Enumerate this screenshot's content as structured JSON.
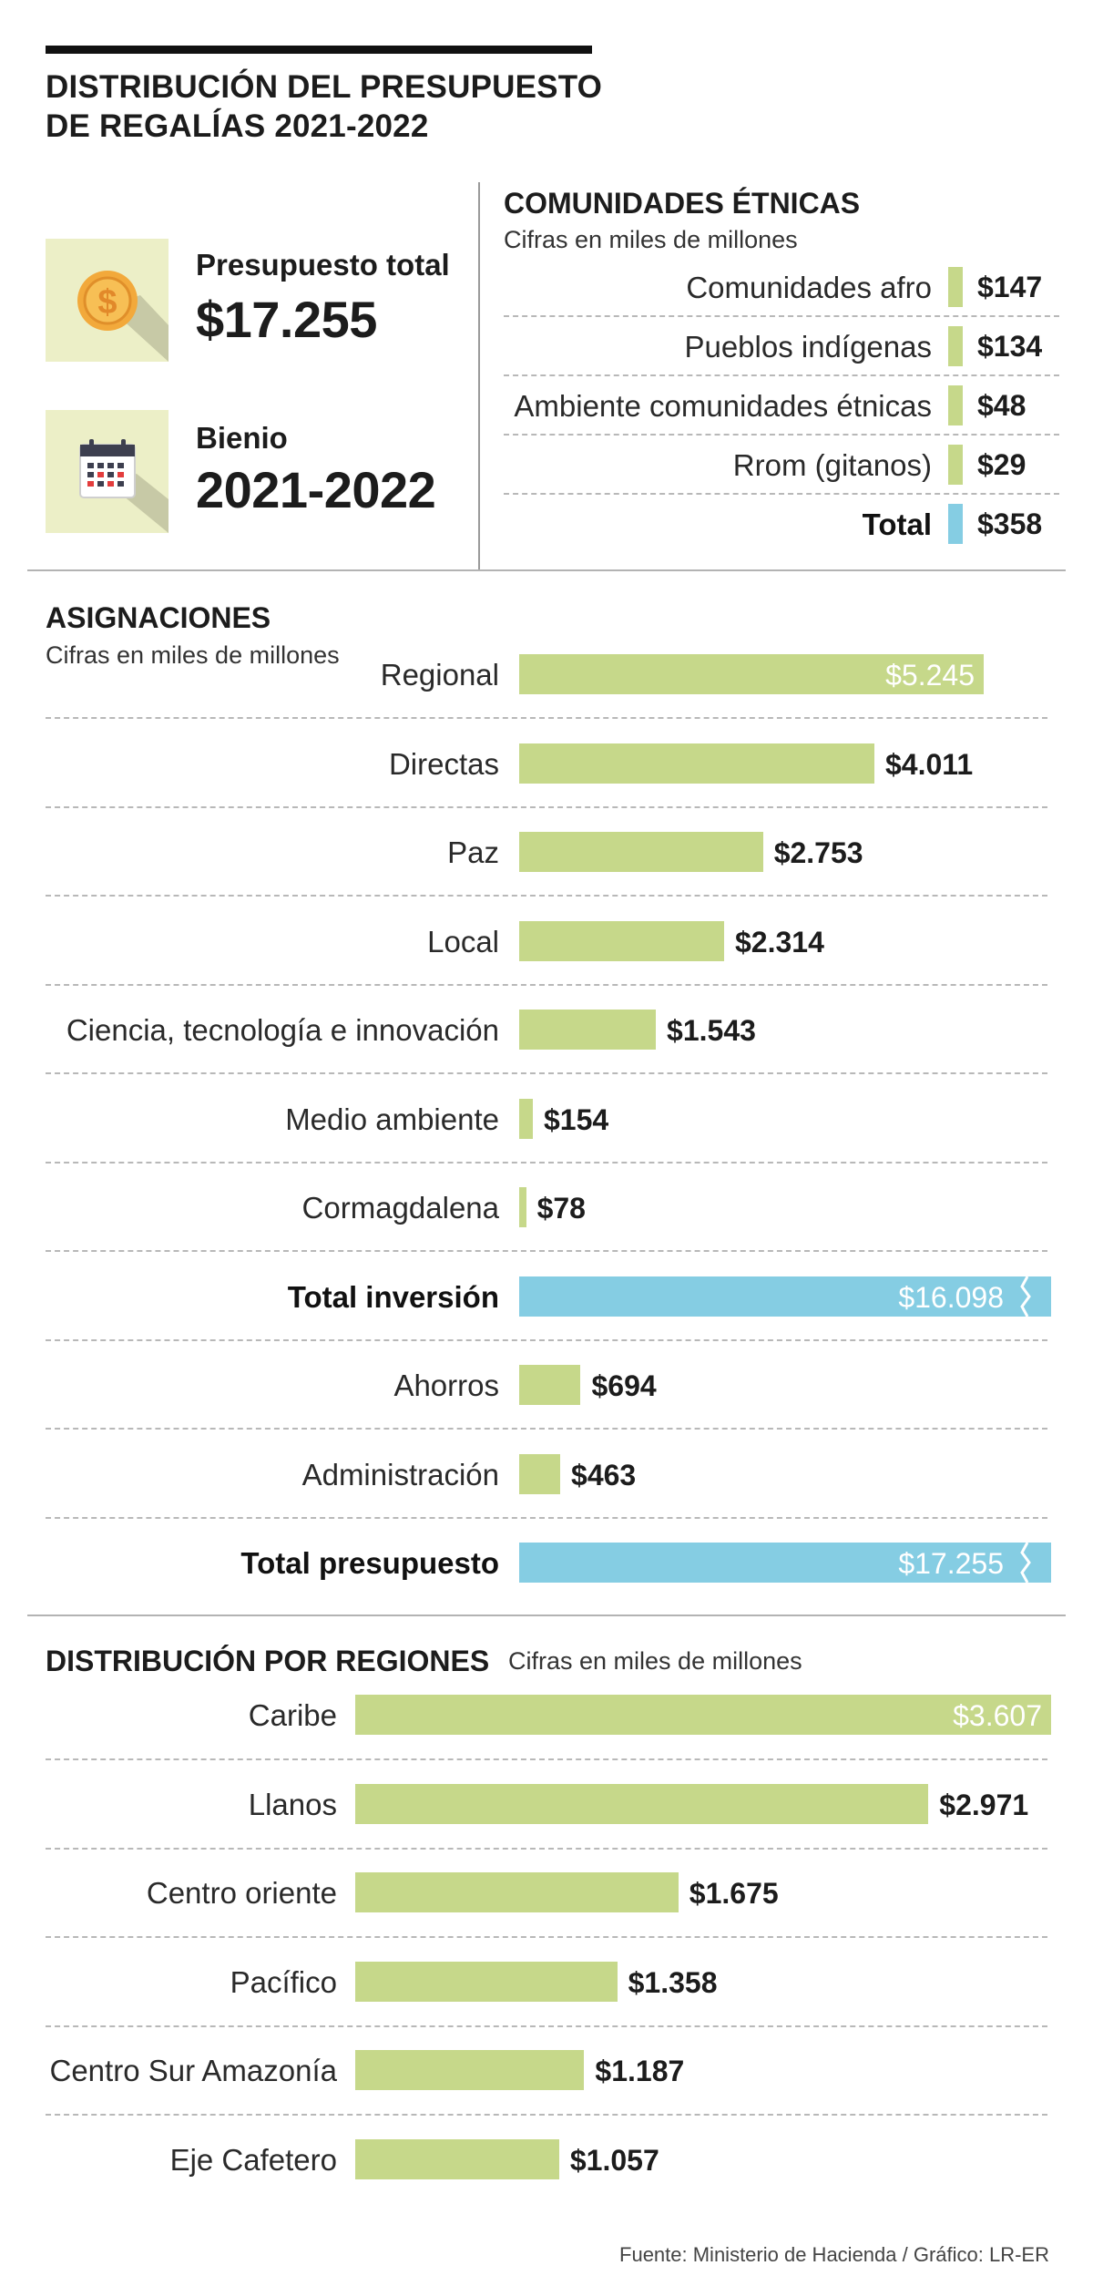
{
  "header": {
    "title_line1": "DISTRIBUCIÓN DEL PRESUPUESTO",
    "title_line2": "DE REGALÍAS 2021-2022"
  },
  "summary": {
    "budget_label": "Presupuesto total",
    "budget_value": "$17.255",
    "budget_icon": "dollar-coin-icon",
    "period_label": "Bienio",
    "period_value": "2021-2022",
    "period_icon": "calendar-icon"
  },
  "colors": {
    "green": "#c6d88a",
    "blue": "#85cde3",
    "icon_bg": "#ecefc7"
  },
  "chart_data": [
    {
      "id": "ethnic",
      "type": "bar",
      "title": "COMUNIDADES ÉTNICAS",
      "subtitle": "Cifras en miles de millones",
      "categories": [
        "Comunidades afro",
        "Pueblos indígenas",
        "Ambiente comunidades étnicas",
        "Rrom (gitanos)",
        "Total"
      ],
      "values": [
        147,
        134,
        48,
        29,
        358
      ],
      "labels": [
        "$147",
        "$134",
        "$48",
        "$29",
        "$358"
      ],
      "bold": [
        false,
        false,
        false,
        false,
        true
      ],
      "colors": [
        "#c6d88a",
        "#c6d88a",
        "#c6d88a",
        "#c6d88a",
        "#85cde3"
      ]
    },
    {
      "id": "asignaciones",
      "type": "bar",
      "title": "ASIGNACIONES",
      "subtitle": "Cifras en miles de millones",
      "categories": [
        "Regional",
        "Directas",
        "Paz",
        "Local",
        "Ciencia, tecnología e innovación",
        "Medio ambiente",
        "Cormagdalena",
        "Total inversión",
        "Ahorros",
        "Administración",
        "Total presupuesto"
      ],
      "values": [
        5245,
        4011,
        2753,
        2314,
        1543,
        154,
        78,
        16098,
        694,
        463,
        17255
      ],
      "labels": [
        "$5.245",
        "$4.011",
        "$2.753",
        "$2.314",
        "$1.543",
        "$154",
        "$78",
        "$16.098",
        "$694",
        "$463",
        "$17.255"
      ],
      "bold": [
        false,
        false,
        false,
        false,
        false,
        false,
        false,
        true,
        false,
        false,
        true
      ],
      "broken": [
        false,
        false,
        false,
        false,
        false,
        false,
        false,
        true,
        false,
        false,
        true
      ],
      "colors": [
        "#c6d88a",
        "#c6d88a",
        "#c6d88a",
        "#c6d88a",
        "#c6d88a",
        "#c6d88a",
        "#c6d88a",
        "#85cde3",
        "#c6d88a",
        "#c6d88a",
        "#85cde3"
      ]
    },
    {
      "id": "regiones",
      "type": "bar",
      "title": "DISTRIBUCIÓN POR REGIONES",
      "subtitle": "Cifras en miles de millones",
      "categories": [
        "Caribe",
        "Llanos",
        "Centro oriente",
        "Pacífico",
        "Centro Sur Amazonía",
        "Eje Cafetero"
      ],
      "values": [
        3607,
        2971,
        1675,
        1358,
        1187,
        1057
      ],
      "labels": [
        "$3.607",
        "$2.971",
        "$1.675",
        "$1.358",
        "$1.187",
        "$1.057"
      ],
      "colors": [
        "#c6d88a",
        "#c6d88a",
        "#c6d88a",
        "#c6d88a",
        "#c6d88a",
        "#c6d88a"
      ]
    }
  ],
  "footer": {
    "source": "Fuente: Ministerio de Hacienda / Gráfico: LR-ER"
  }
}
